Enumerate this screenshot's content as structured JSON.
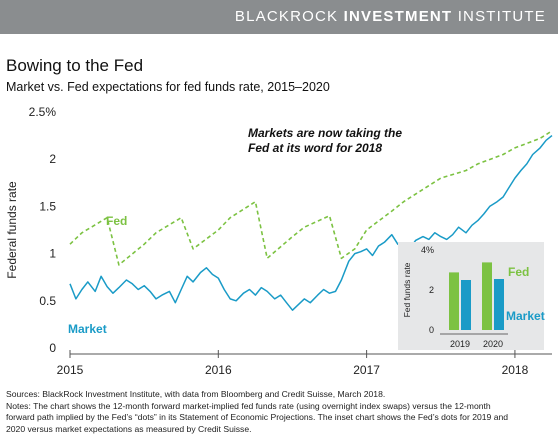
{
  "header": {
    "brand_light": "BLACKROCK",
    "brand_bold": "INVESTMENT",
    "brand_end": "INSTITUTE"
  },
  "title": "Bowing to the Fed",
  "subtitle": "Market vs. Fed expectations for fed funds rate, 2015–2020",
  "notes": {
    "sources": "Sources: BlackRock Investment Institute, with data from Bloomberg and Credit Suisse, March 2018.",
    "line1": "Notes: The chart shows the 12-month forward market-implied fed funds rate (using overnight index swaps) versus the 12-month",
    "line2": "forward path implied by the Fed’s “dots” in its Statement of Economic Projections. The inset chart shows the Fed’s dots for 2019 and",
    "line3": "2020 versus market expectations as measured by Credit Suisse."
  },
  "colors": {
    "fed": "#7cc242",
    "market": "#1a9bc7",
    "header": "#8a8d8f",
    "inset_bg": "#e6e7e8"
  },
  "chart_data": [
    {
      "type": "line",
      "ylabel": "Federal funds rate",
      "y_tick_labels": [
        "2.5%",
        "2",
        "1.5",
        "1",
        "0.5",
        "0"
      ],
      "x_tick_labels": [
        "2015",
        "2016",
        "2017",
        "2018"
      ],
      "ylim": [
        0,
        2.5
      ],
      "xlim": [
        2015.0,
        2018.25
      ],
      "grid": false,
      "annotation": [
        "Markets are now taking the",
        "Fed at its word for 2018"
      ],
      "series": [
        {
          "name": "Fed",
          "style": "dashed",
          "x": [
            2015.0,
            2015.08,
            2015.25,
            2015.33,
            2015.5,
            2015.58,
            2015.75,
            2015.83,
            2016.0,
            2016.08,
            2016.25,
            2016.33,
            2016.5,
            2016.58,
            2016.75,
            2016.83,
            2016.92,
            2017.0,
            2017.17,
            2017.25,
            2017.42,
            2017.5,
            2017.67,
            2017.75,
            2017.92,
            2018.0,
            2018.17,
            2018.25
          ],
          "values": [
            1.1,
            1.22,
            1.38,
            0.88,
            1.1,
            1.22,
            1.38,
            1.05,
            1.25,
            1.38,
            1.55,
            0.95,
            1.18,
            1.28,
            1.4,
            0.95,
            1.05,
            1.25,
            1.45,
            1.55,
            1.72,
            1.8,
            1.88,
            1.95,
            2.05,
            2.12,
            2.22,
            2.3
          ]
        },
        {
          "name": "Market",
          "style": "solid",
          "x": [
            2015.0,
            2015.04,
            2015.08,
            2015.12,
            2015.17,
            2015.21,
            2015.25,
            2015.29,
            2015.33,
            2015.38,
            2015.42,
            2015.46,
            2015.5,
            2015.54,
            2015.58,
            2015.62,
            2015.67,
            2015.71,
            2015.75,
            2015.79,
            2015.83,
            2015.88,
            2015.92,
            2015.96,
            2016.0,
            2016.04,
            2016.08,
            2016.12,
            2016.17,
            2016.21,
            2016.25,
            2016.29,
            2016.33,
            2016.38,
            2016.42,
            2016.46,
            2016.5,
            2016.54,
            2016.58,
            2016.62,
            2016.67,
            2016.71,
            2016.75,
            2016.79,
            2016.83,
            2016.88,
            2016.92,
            2016.96,
            2017.0,
            2017.04,
            2017.08,
            2017.12,
            2017.17,
            2017.21,
            2017.25,
            2017.29,
            2017.33,
            2017.38,
            2017.42,
            2017.46,
            2017.5,
            2017.54,
            2017.58,
            2017.62,
            2017.67,
            2017.71,
            2017.75,
            2017.79,
            2017.83,
            2017.88,
            2017.92,
            2017.96,
            2018.0,
            2018.04,
            2018.08,
            2018.12,
            2018.17,
            2018.21,
            2018.25
          ],
          "values": [
            0.68,
            0.52,
            0.62,
            0.7,
            0.6,
            0.76,
            0.65,
            0.58,
            0.64,
            0.72,
            0.68,
            0.62,
            0.66,
            0.6,
            0.52,
            0.56,
            0.6,
            0.48,
            0.62,
            0.76,
            0.7,
            0.8,
            0.85,
            0.78,
            0.74,
            0.62,
            0.52,
            0.5,
            0.58,
            0.62,
            0.56,
            0.64,
            0.6,
            0.52,
            0.56,
            0.48,
            0.4,
            0.46,
            0.52,
            0.48,
            0.56,
            0.62,
            0.58,
            0.6,
            0.72,
            0.92,
            1.0,
            1.02,
            1.05,
            0.98,
            1.08,
            1.12,
            1.2,
            1.1,
            1.08,
            1.05,
            1.14,
            1.18,
            1.15,
            1.22,
            1.18,
            1.15,
            1.2,
            1.28,
            1.22,
            1.3,
            1.35,
            1.42,
            1.5,
            1.55,
            1.6,
            1.7,
            1.8,
            1.88,
            1.95,
            2.05,
            2.12,
            2.2,
            2.25
          ]
        }
      ]
    },
    {
      "type": "bar",
      "ylabel": "Fed funds rate",
      "y_tick_labels": [
        "4%",
        "2",
        "0"
      ],
      "ylim": [
        0,
        4
      ],
      "grid": false,
      "categories": [
        "2019",
        "2020"
      ],
      "series": [
        {
          "name": "Fed",
          "values": [
            2.88,
            3.38
          ]
        },
        {
          "name": "Market",
          "values": [
            2.5,
            2.55
          ]
        }
      ]
    }
  ]
}
